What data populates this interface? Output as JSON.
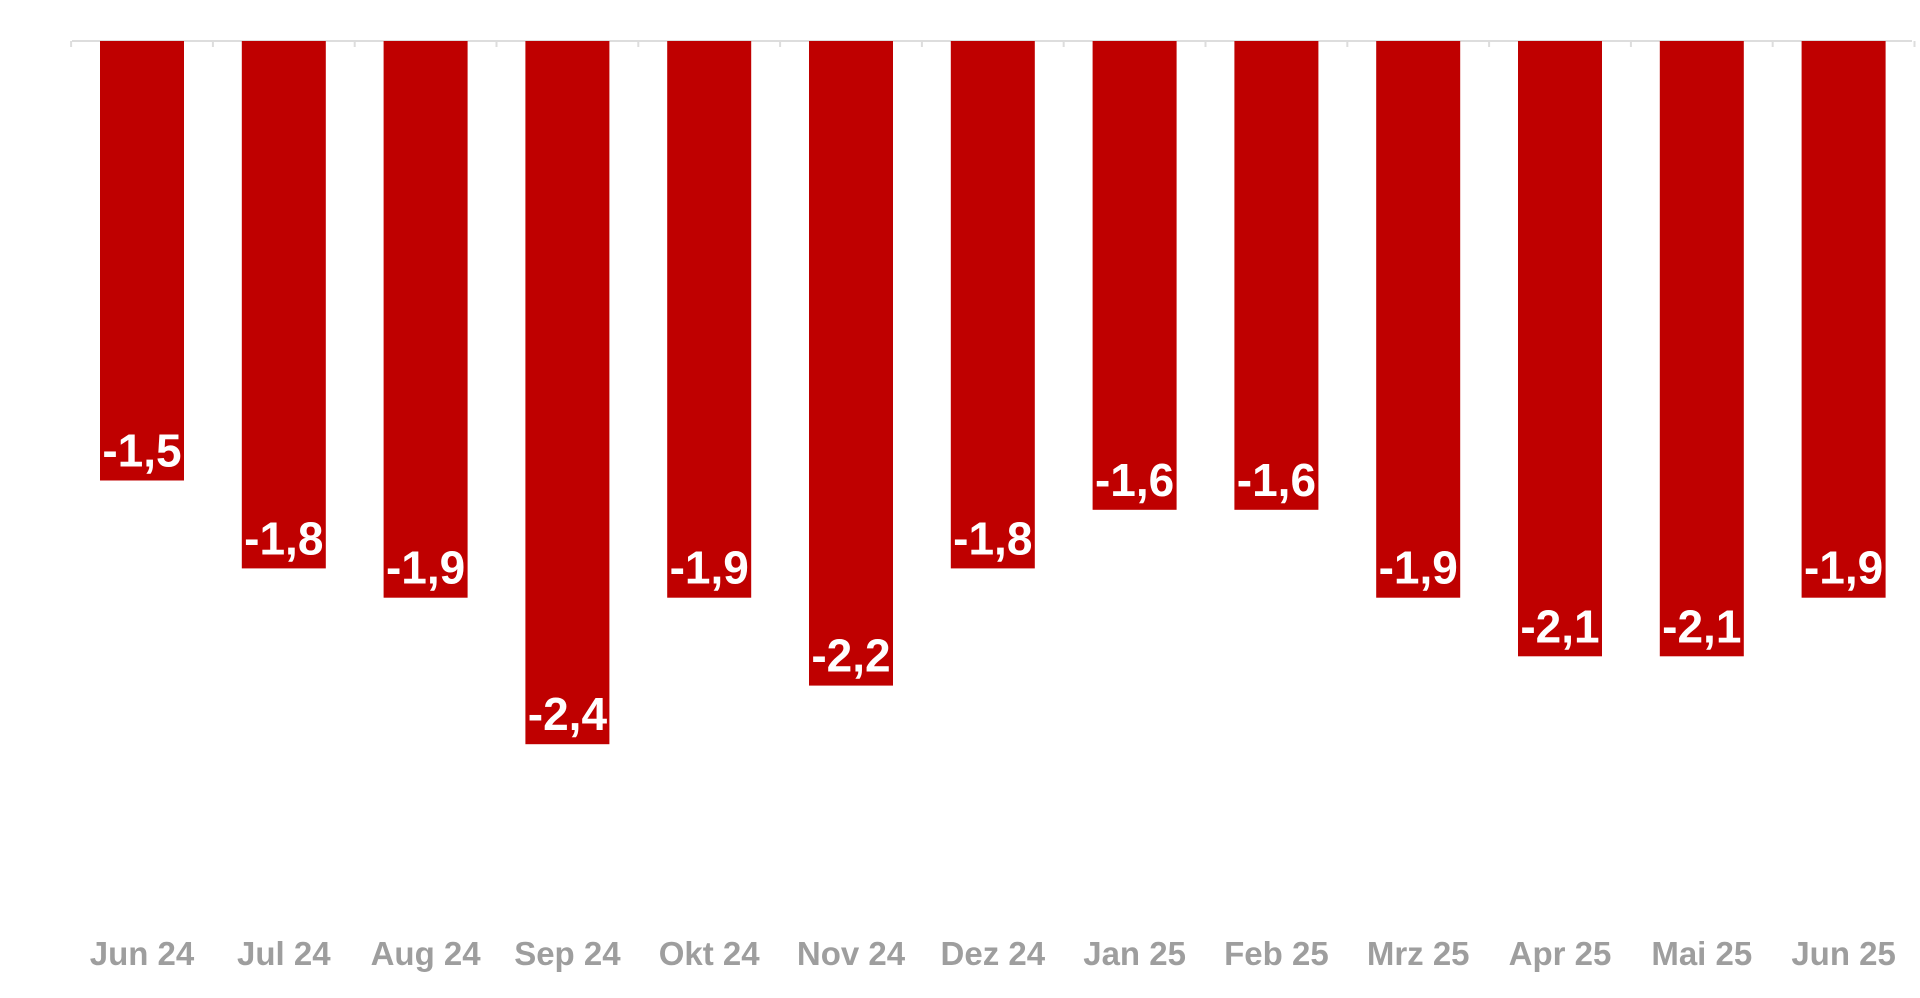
{
  "chart_data": {
    "type": "bar",
    "categories": [
      "Jun 24",
      "Jul 24",
      "Aug 24",
      "Sep 24",
      "Okt 24",
      "Nov 24",
      "Dez 24",
      "Jan 25",
      "Feb 25",
      "Mrz 25",
      "Apr 25",
      "Mai 25",
      "Jun 25"
    ],
    "values": [
      -1.5,
      -1.8,
      -1.9,
      -2.4,
      -1.9,
      -2.2,
      -1.8,
      -1.6,
      -1.6,
      -1.9,
      -2.1,
      -2.1,
      -1.9
    ],
    "value_labels": [
      "-1,5",
      "-1,8",
      "-1,9",
      "-2,4",
      "-1,9",
      "-2,2",
      "-1,8",
      "-1,6",
      "-1,6",
      "-1,9",
      "-2,1",
      "-2,1",
      "-1,9"
    ],
    "title": "",
    "xlabel": "",
    "ylabel": "",
    "ylim": [
      -3.0,
      0
    ],
    "grid": false,
    "legend": "none",
    "colors": {
      "bar": "#bf0000",
      "axis": "#dddddd",
      "tick_text": "#9e9e9e",
      "label_text": "#ffffff"
    }
  }
}
